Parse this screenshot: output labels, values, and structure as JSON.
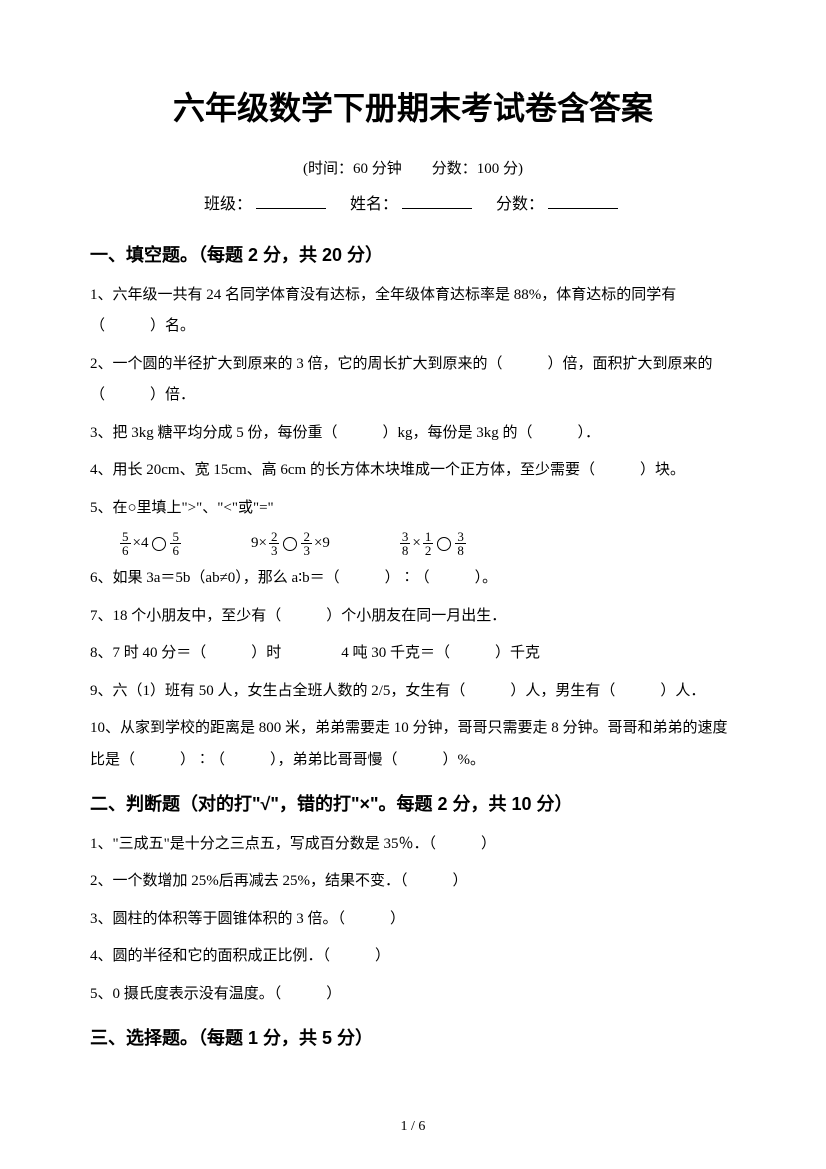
{
  "title": "六年级数学下册期末考试卷含答案",
  "meta": "(时间：60 分钟　　分数：100 分)",
  "fillline": {
    "class_label": "班级：",
    "name_label": "姓名：",
    "score_label": "分数："
  },
  "section1": {
    "heading": "一、填空题。（每题 2 分，共 20 分）",
    "q1": "1、六年级一共有 24 名同学体育没有达标，全年级体育达标率是 88%，体育达标的同学有（　　　）名。",
    "q2": "2、一个圆的半径扩大到原来的 3 倍，它的周长扩大到原来的（　　　）倍，面积扩大到原来的（　　　）倍．",
    "q3": "3、把 3kg 糖平均分成 5 份，每份重（　　　）kg，每份是 3kg 的（　　　）．",
    "q4": "4、用长 20cm、宽 15cm、高 6cm 的长方体木块堆成一个正方体，至少需要（　　　）块。",
    "q5": "5、在○里填上\">\"、\"<\"或\"=\"",
    "math": {
      "expr1": {
        "f1n": "5",
        "f1d": "6",
        "op1": "×4",
        "f2n": "5",
        "f2d": "6"
      },
      "expr2": {
        "pre": "9×",
        "f1n": "2",
        "f1d": "3",
        "f2n": "2",
        "f2d": "3",
        "post": "×9"
      },
      "expr3": {
        "f1n": "3",
        "f1d": "8",
        "op": "×",
        "f2n": "1",
        "f2d": "2",
        "f3n": "3",
        "f3d": "8"
      }
    },
    "q6": "6、如果 3a＝5b（ab≠0），那么 a∶b＝（　　　）∶（　　　）。",
    "q7": "7、18 个小朋友中，至少有（　　　）个小朋友在同一月出生．",
    "q8": "8、7 时 40 分＝（　　　）时　　　　4 吨 30 千克＝（　　　）千克",
    "q9": "9、六（1）班有 50 人，女生占全班人数的 2/5，女生有（　　　）人，男生有（　　　）人．",
    "q10": "10、从家到学校的距离是 800 米，弟弟需要走 10 分钟，哥哥只需要走 8 分钟。哥哥和弟弟的速度比是（　　　）∶（　　　），弟弟比哥哥慢（　　　）%。"
  },
  "section2": {
    "heading": "二、判断题（对的打\"√\"，错的打\"×\"。每题 2 分，共 10 分）",
    "q1": "1、\"三成五\"是十分之三点五，写成百分数是 35％．（　　　）",
    "q2": "2、一个数增加 25%后再减去 25%，结果不变．（　　　）",
    "q3": "3、圆柱的体积等于圆锥体积的 3 倍。（　　　）",
    "q4": "4、圆的半径和它的面积成正比例．（　　　）",
    "q5": "5、0 摄氏度表示没有温度。（　　　）"
  },
  "section3": {
    "heading": "三、选择题。（每题 1 分，共 5 分）"
  },
  "pagenum": "1 / 6",
  "colors": {
    "text": "#000000",
    "background": "#ffffff"
  },
  "typography": {
    "title_fontsize": 32,
    "heading_fontsize": 18,
    "body_fontsize": 15,
    "title_font": "SimHei",
    "body_font": "SimSun"
  }
}
